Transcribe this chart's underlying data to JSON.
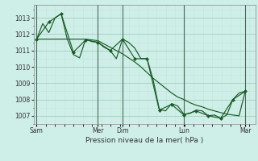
{
  "background_color": "#ceeee8",
  "grid_color_major": "#a8ccbb",
  "grid_color_minor": "#c4e4d8",
  "line_color": "#1a5c28",
  "marker_color": "#1a5c28",
  "title": "Pression niveau de la mer( hPa )",
  "ylim": [
    1006.5,
    1013.8
  ],
  "yticks": [
    1007,
    1008,
    1009,
    1010,
    1011,
    1012,
    1013
  ],
  "day_labels": [
    "Sam",
    "Mer",
    "Dim",
    "Lun",
    "Mar"
  ],
  "day_positions": [
    0,
    60,
    84,
    144,
    204
  ],
  "xlim": [
    -3,
    214
  ],
  "series1_x": [
    0,
    6,
    12,
    18,
    24,
    30,
    36,
    42,
    48,
    54,
    60,
    66,
    72,
    78,
    84,
    90,
    96,
    102,
    108,
    114,
    120,
    126,
    132,
    138,
    144,
    150,
    156,
    162,
    168,
    174,
    180,
    186,
    192,
    198,
    204
  ],
  "series1_y": [
    1011.7,
    1012.65,
    1012.1,
    1013.0,
    1013.25,
    1011.7,
    1010.75,
    1010.55,
    1011.7,
    1011.55,
    1011.5,
    1011.2,
    1011.0,
    1010.5,
    1011.7,
    1011.5,
    1011.15,
    1010.5,
    1010.5,
    1009.2,
    1007.4,
    1007.3,
    1007.75,
    1007.6,
    1007.1,
    1007.15,
    1007.35,
    1007.3,
    1007.0,
    1007.05,
    1006.85,
    1007.05,
    1008.0,
    1008.4,
    1008.5
  ],
  "series2_x": [
    0,
    6,
    12,
    18,
    24,
    30,
    36,
    42,
    48,
    54,
    60,
    66,
    72,
    78,
    84,
    90,
    96,
    102,
    108,
    114,
    120,
    126,
    132,
    138,
    144,
    150,
    156,
    162,
    168,
    174,
    180,
    186,
    192,
    198,
    204
  ],
  "series2_y": [
    1011.7,
    1011.7,
    1011.7,
    1011.7,
    1011.7,
    1011.7,
    1011.7,
    1011.7,
    1011.7,
    1011.65,
    1011.6,
    1011.4,
    1011.2,
    1011.0,
    1010.8,
    1010.55,
    1010.3,
    1010.0,
    1009.65,
    1009.3,
    1009.0,
    1008.7,
    1008.4,
    1008.15,
    1008.0,
    1007.8,
    1007.65,
    1007.55,
    1007.4,
    1007.3,
    1007.2,
    1007.1,
    1007.05,
    1007.0,
    1008.5
  ],
  "series3_x": [
    0,
    12,
    24,
    36,
    48,
    60,
    72,
    84,
    96,
    108,
    120,
    132,
    144,
    156,
    168,
    180,
    192,
    204
  ],
  "series3_y": [
    1011.7,
    1012.75,
    1013.25,
    1010.9,
    1011.65,
    1011.5,
    1011.0,
    1011.7,
    1010.5,
    1010.5,
    1007.35,
    1007.7,
    1007.05,
    1007.3,
    1007.0,
    1006.85,
    1008.0,
    1008.5
  ]
}
